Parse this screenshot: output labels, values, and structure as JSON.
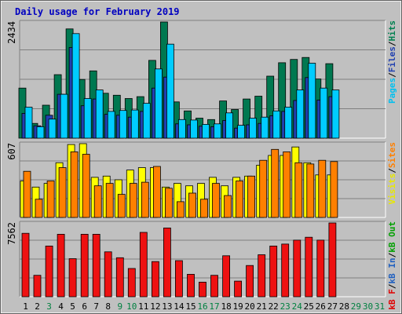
{
  "chart_data": {
    "type": "bar",
    "title": "Daily usage for February 2019",
    "days": [
      "1",
      "2",
      "3",
      "4",
      "5",
      "6",
      "7",
      "8",
      "9",
      "10",
      "11",
      "12",
      "13",
      "14",
      "15",
      "16",
      "17",
      "18",
      "19",
      "20",
      "21",
      "22",
      "23",
      "24",
      "25",
      "26",
      "27",
      "28",
      "29",
      "30",
      "31"
    ],
    "day_colors": [
      "#000000",
      "#000000",
      "#008040",
      "#000000",
      "#000000",
      "#000000",
      "#000000",
      "#000000",
      "#008040",
      "#008040",
      "#000000",
      "#000000",
      "#000000",
      "#000000",
      "#000000",
      "#008040",
      "#008040",
      "#000000",
      "#000000",
      "#000000",
      "#000000",
      "#000000",
      "#008040",
      "#008040",
      "#000000",
      "#000000",
      "#000000",
      "#000000",
      "#008040",
      "#008040",
      "#008040"
    ],
    "panels": [
      {
        "max_label": "2434",
        "max": 2434,
        "right_labels": [
          {
            "text": "Pages",
            "color": "#00c0f0"
          },
          {
            "text": "Files",
            "color": "#2040b0"
          },
          {
            "text": "Hits",
            "color": "#008050"
          }
        ],
        "series": [
          {
            "name": "Hits",
            "color": "#007850",
            "values": [
              1050,
              310,
              690,
              1330,
              2290,
              1230,
              1410,
              940,
              900,
              830,
              870,
              1630,
              2434,
              760,
              570,
              420,
              390,
              780,
              600,
              820,
              880,
              1300,
              1580,
              1650,
              1690,
              1240,
              1560,
              0,
              0,
              0,
              0
            ]
          },
          {
            "name": "Files",
            "color": "#2040b0",
            "values": [
              520,
              260,
              480,
              920,
              1900,
              680,
              820,
              500,
              480,
              440,
              560,
              1050,
              1280,
              300,
              280,
              250,
              240,
              370,
              210,
              280,
              310,
              470,
              560,
              790,
              1270,
              800,
              870,
              0,
              0,
              0,
              0
            ]
          },
          {
            "name": "Pages",
            "color": "#00ccff",
            "values": [
              650,
              240,
              400,
              920,
              2190,
              830,
              1010,
              560,
              580,
              590,
              730,
              1450,
              1970,
              390,
              380,
              290,
              300,
              530,
              270,
              420,
              440,
              570,
              650,
              1010,
              1570,
              1050,
              1010,
              0,
              0,
              0,
              0
            ]
          }
        ]
      },
      {
        "max_label": "607",
        "max": 607,
        "right_labels": [
          {
            "text": "Visits",
            "color": "#e8e800"
          },
          {
            "text": "Sites",
            "color": "#ff8000"
          }
        ],
        "series": [
          {
            "name": "Visits",
            "color": "#ffff00",
            "values": [
              300,
              250,
              280,
              450,
              600,
              607,
              330,
              340,
              310,
              390,
              410,
              410,
              250,
              280,
              260,
              280,
              330,
              260,
              330,
              340,
              430,
              510,
              510,
              580,
              450,
              350,
              350,
              0,
              0,
              0,
              0
            ]
          },
          {
            "name": "Sites",
            "color": "#ff8000",
            "values": [
              380,
              150,
              300,
              410,
              540,
              520,
              260,
              280,
              190,
              280,
              290,
              420,
              240,
              130,
              200,
              150,
              280,
              180,
              300,
              340,
              470,
              560,
              540,
              450,
              440,
              470,
              460,
              0,
              0,
              0,
              0
            ]
          }
        ]
      },
      {
        "max_label": "7562",
        "max": 7562,
        "right_labels": [
          {
            "text": "kB F",
            "color": "#e00000"
          },
          {
            "text": "kB In",
            "color": "#2060c0"
          },
          {
            "text": "kB Out",
            "color": "#00a000"
          }
        ],
        "series": [
          {
            "name": "kB F",
            "color": "#ee1111",
            "values": [
              6500,
              2200,
              5200,
              6400,
              3900,
              6400,
              6400,
              4600,
              4000,
              2900,
              6600,
              3600,
              7050,
              3700,
              2300,
              1500,
              2200,
              4200,
              1600,
              3200,
              4300,
              5200,
              5400,
              5800,
              6100,
              5800,
              7562,
              0,
              0,
              0,
              0
            ]
          }
        ]
      }
    ]
  }
}
